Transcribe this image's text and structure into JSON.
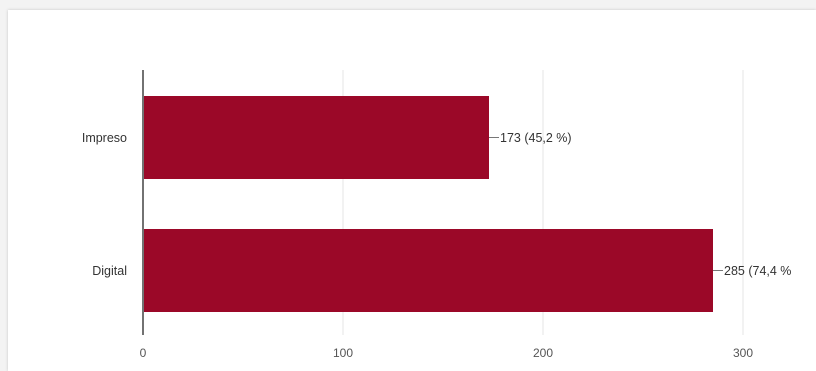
{
  "colors": {
    "bar": "#9b0828",
    "axis": "#444444",
    "grid": "#e6e6e6",
    "leader": "#777777"
  },
  "chart_data": {
    "type": "bar",
    "orientation": "horizontal",
    "categories": [
      "Impreso",
      "Digital"
    ],
    "values": [
      173,
      285
    ],
    "data_labels": [
      "173 (45,2 %)",
      "285 (74,4 %"
    ],
    "xlim": [
      0,
      300
    ],
    "xticks": [
      0,
      100,
      200,
      300
    ],
    "xtick_labels": [
      "0",
      "100",
      "200",
      "300"
    ],
    "grid": true,
    "legend": "none"
  }
}
